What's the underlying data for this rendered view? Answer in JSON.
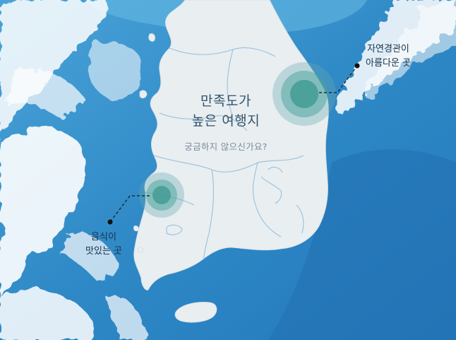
{
  "title": {
    "line1": "만족도가",
    "line2": "높은 여행지"
  },
  "subtitle": "궁금하지 않으신가요?",
  "annotations": {
    "east": {
      "line1": "자연경관이",
      "line2": "아름다운 곳"
    },
    "southwest": {
      "line1": "음식이",
      "line2": "맛있는 곳"
    }
  },
  "colors": {
    "sea": "#2d86c4",
    "sea_deep": "#1f73b5",
    "waves": "#ffffff",
    "land": "#e9eef1",
    "border": "#8fbcd9",
    "highlight": "#4aa39b",
    "text": "#32546b"
  }
}
